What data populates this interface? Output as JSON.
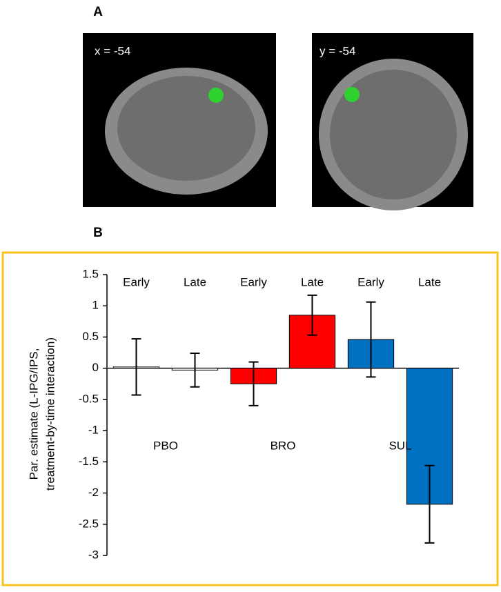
{
  "panel_a": {
    "label": "A",
    "images": [
      "x = -54",
      "y = -54"
    ]
  },
  "panel_b_label": "B",
  "chart_data": {
    "type": "bar",
    "ylabel_lines": [
      "Par. estimate (L-IPG/IPS,",
      "treatment-by-time  interaction)"
    ],
    "categories": [
      "Early",
      "Late",
      "Early",
      "Late",
      "Early",
      "Late"
    ],
    "groups": [
      "PBO",
      "BRO",
      "SUL"
    ],
    "values": [
      0.02,
      -0.03,
      -0.25,
      0.85,
      0.46,
      -2.18
    ],
    "errors": [
      0.45,
      0.27,
      0.35,
      0.32,
      0.6,
      0.62
    ],
    "colors": [
      "#ffffff",
      "#ffffff",
      "#ff0000",
      "#ff0000",
      "#0070c0",
      "#0070c0"
    ],
    "ylim": [
      -3,
      1.5
    ],
    "yticks": [
      -3,
      -2.5,
      -2,
      -1.5,
      -1,
      -0.5,
      0,
      0.5,
      1,
      1.5
    ]
  }
}
